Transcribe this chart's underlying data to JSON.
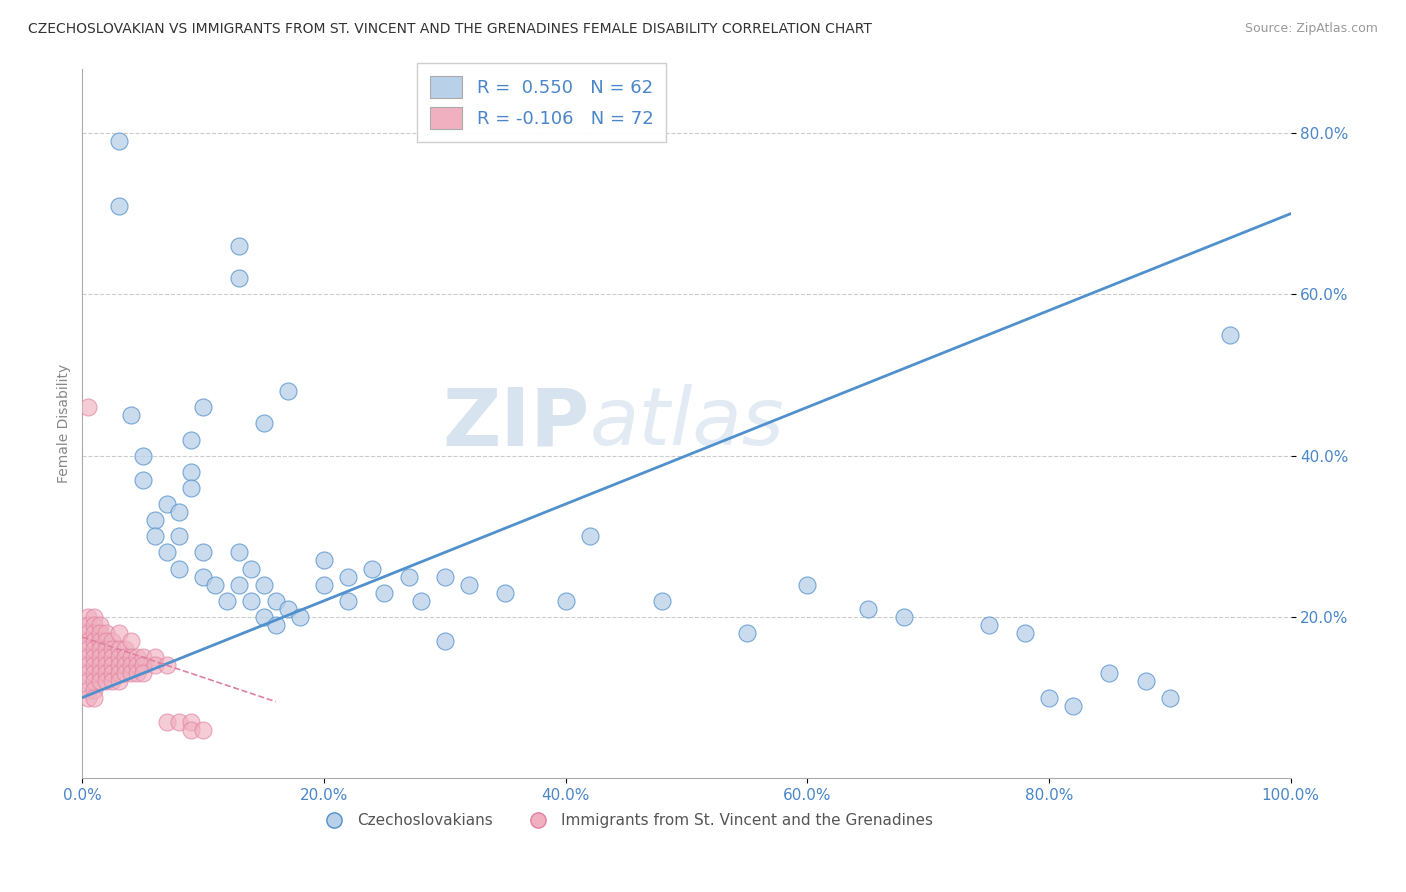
{
  "title": "CZECHOSLOVAKIAN VS IMMIGRANTS FROM ST. VINCENT AND THE GRENADINES FEMALE DISABILITY CORRELATION CHART",
  "source": "Source: ZipAtlas.com",
  "ylabel": "Female Disability",
  "xlim": [
    0.0,
    1.0
  ],
  "ylim": [
    0.0,
    0.88
  ],
  "yticks": [
    0.2,
    0.4,
    0.6,
    0.8
  ],
  "ytick_labels": [
    "20.0%",
    "40.0%",
    "60.0%",
    "80.0%"
  ],
  "xtick_labels": [
    "0.0%",
    "20.0%",
    "40.0%",
    "60.0%",
    "80.0%",
    "100.0%"
  ],
  "xticks": [
    0.0,
    0.2,
    0.4,
    0.6,
    0.8,
    1.0
  ],
  "blue_R": 0.55,
  "blue_N": 62,
  "pink_R": -0.106,
  "pink_N": 72,
  "blue_color": "#b8d0e8",
  "pink_color": "#f0b0c0",
  "blue_line_color": "#5090cc",
  "pink_line_color": "#e080a0",
  "legend_blue_label": "R =  0.550   N = 62",
  "legend_pink_label": "R = -0.106   N = 72",
  "watermark_zip": "ZIP",
  "watermark_atlas": "atlas",
  "blue_dots": [
    [
      0.03,
      0.79
    ],
    [
      0.03,
      0.71
    ],
    [
      0.13,
      0.66
    ],
    [
      0.13,
      0.62
    ],
    [
      0.17,
      0.48
    ],
    [
      0.1,
      0.46
    ],
    [
      0.15,
      0.44
    ],
    [
      0.09,
      0.42
    ],
    [
      0.09,
      0.38
    ],
    [
      0.09,
      0.36
    ],
    [
      0.04,
      0.45
    ],
    [
      0.05,
      0.4
    ],
    [
      0.05,
      0.37
    ],
    [
      0.06,
      0.32
    ],
    [
      0.06,
      0.3
    ],
    [
      0.07,
      0.34
    ],
    [
      0.07,
      0.28
    ],
    [
      0.08,
      0.33
    ],
    [
      0.08,
      0.3
    ],
    [
      0.08,
      0.26
    ],
    [
      0.1,
      0.28
    ],
    [
      0.1,
      0.25
    ],
    [
      0.11,
      0.24
    ],
    [
      0.12,
      0.22
    ],
    [
      0.13,
      0.28
    ],
    [
      0.13,
      0.24
    ],
    [
      0.14,
      0.26
    ],
    [
      0.14,
      0.22
    ],
    [
      0.15,
      0.24
    ],
    [
      0.15,
      0.2
    ],
    [
      0.16,
      0.22
    ],
    [
      0.16,
      0.19
    ],
    [
      0.17,
      0.21
    ],
    [
      0.18,
      0.2
    ],
    [
      0.2,
      0.27
    ],
    [
      0.2,
      0.24
    ],
    [
      0.22,
      0.25
    ],
    [
      0.22,
      0.22
    ],
    [
      0.24,
      0.26
    ],
    [
      0.25,
      0.23
    ],
    [
      0.27,
      0.25
    ],
    [
      0.28,
      0.22
    ],
    [
      0.3,
      0.25
    ],
    [
      0.3,
      0.17
    ],
    [
      0.32,
      0.24
    ],
    [
      0.35,
      0.23
    ],
    [
      0.4,
      0.22
    ],
    [
      0.42,
      0.3
    ],
    [
      0.48,
      0.22
    ],
    [
      0.55,
      0.18
    ],
    [
      0.6,
      0.24
    ],
    [
      0.65,
      0.21
    ],
    [
      0.68,
      0.2
    ],
    [
      0.75,
      0.19
    ],
    [
      0.78,
      0.18
    ],
    [
      0.8,
      0.1
    ],
    [
      0.82,
      0.09
    ],
    [
      0.85,
      0.13
    ],
    [
      0.88,
      0.12
    ],
    [
      0.9,
      0.1
    ],
    [
      0.95,
      0.55
    ],
    [
      0.05,
      0.14
    ]
  ],
  "pink_dots": [
    [
      0.005,
      0.46
    ],
    [
      0.005,
      0.2
    ],
    [
      0.005,
      0.19
    ],
    [
      0.005,
      0.18
    ],
    [
      0.005,
      0.17
    ],
    [
      0.005,
      0.16
    ],
    [
      0.005,
      0.15
    ],
    [
      0.005,
      0.14
    ],
    [
      0.005,
      0.13
    ],
    [
      0.005,
      0.12
    ],
    [
      0.005,
      0.11
    ],
    [
      0.005,
      0.1
    ],
    [
      0.01,
      0.2
    ],
    [
      0.01,
      0.19
    ],
    [
      0.01,
      0.18
    ],
    [
      0.01,
      0.17
    ],
    [
      0.01,
      0.16
    ],
    [
      0.01,
      0.15
    ],
    [
      0.01,
      0.14
    ],
    [
      0.01,
      0.13
    ],
    [
      0.01,
      0.12
    ],
    [
      0.01,
      0.11
    ],
    [
      0.01,
      0.1
    ],
    [
      0.015,
      0.19
    ],
    [
      0.015,
      0.18
    ],
    [
      0.015,
      0.17
    ],
    [
      0.015,
      0.16
    ],
    [
      0.015,
      0.15
    ],
    [
      0.015,
      0.14
    ],
    [
      0.015,
      0.13
    ],
    [
      0.015,
      0.12
    ],
    [
      0.02,
      0.18
    ],
    [
      0.02,
      0.17
    ],
    [
      0.02,
      0.16
    ],
    [
      0.02,
      0.15
    ],
    [
      0.02,
      0.14
    ],
    [
      0.02,
      0.13
    ],
    [
      0.02,
      0.12
    ],
    [
      0.025,
      0.17
    ],
    [
      0.025,
      0.16
    ],
    [
      0.025,
      0.15
    ],
    [
      0.025,
      0.14
    ],
    [
      0.025,
      0.13
    ],
    [
      0.025,
      0.12
    ],
    [
      0.03,
      0.18
    ],
    [
      0.03,
      0.16
    ],
    [
      0.03,
      0.15
    ],
    [
      0.03,
      0.14
    ],
    [
      0.03,
      0.13
    ],
    [
      0.03,
      0.12
    ],
    [
      0.035,
      0.16
    ],
    [
      0.035,
      0.15
    ],
    [
      0.035,
      0.14
    ],
    [
      0.035,
      0.13
    ],
    [
      0.04,
      0.17
    ],
    [
      0.04,
      0.15
    ],
    [
      0.04,
      0.14
    ],
    [
      0.04,
      0.13
    ],
    [
      0.045,
      0.15
    ],
    [
      0.045,
      0.14
    ],
    [
      0.045,
      0.13
    ],
    [
      0.05,
      0.15
    ],
    [
      0.05,
      0.14
    ],
    [
      0.05,
      0.13
    ],
    [
      0.06,
      0.15
    ],
    [
      0.06,
      0.14
    ],
    [
      0.07,
      0.14
    ],
    [
      0.07,
      0.07
    ],
    [
      0.08,
      0.07
    ],
    [
      0.09,
      0.07
    ],
    [
      0.09,
      0.06
    ],
    [
      0.1,
      0.06
    ]
  ],
  "blue_line_x": [
    0.0,
    1.0
  ],
  "blue_line_y": [
    0.1,
    0.7
  ],
  "pink_line_x": [
    0.0,
    0.16
  ],
  "pink_line_y": [
    0.175,
    0.095
  ],
  "background_color": "#ffffff",
  "grid_color": "#cccccc"
}
